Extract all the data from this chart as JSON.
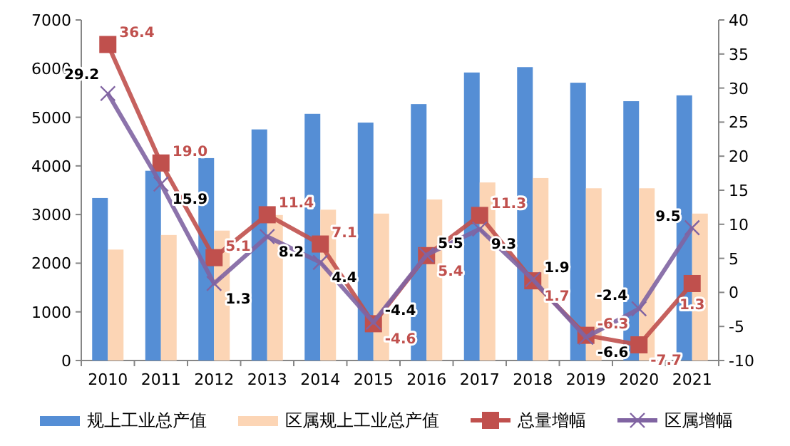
{
  "chart_data": {
    "type": "bar",
    "categories": [
      "2010",
      "2011",
      "2012",
      "2013",
      "2014",
      "2015",
      "2016",
      "2017",
      "2018",
      "2019",
      "2020",
      "2021"
    ],
    "ylim": [
      0,
      7000
    ],
    "yticks": [
      0,
      1000,
      2000,
      3000,
      4000,
      5000,
      6000,
      7000
    ],
    "y2lim": [
      -10,
      40
    ],
    "y2ticks": [
      -10,
      -5,
      0,
      5,
      10,
      15,
      20,
      25,
      30,
      35,
      40
    ],
    "legend": "bottom",
    "series": [
      {
        "name": "规上工业总产值",
        "color": "#558ed5",
        "values": [
          3340,
          3900,
          4160,
          4750,
          5070,
          4890,
          5270,
          5920,
          6030,
          5710,
          5330,
          5450
        ]
      },
      {
        "name": "区属规上工业总产值",
        "color": "#fcd5b5",
        "values": [
          2280,
          2580,
          2670,
          2990,
          3100,
          3020,
          3310,
          3660,
          3750,
          3540,
          3540,
          3020
        ]
      },
      {
        "name": "总量增幅",
        "type": "line",
        "axis": "y2",
        "marker": "square",
        "color": "#c0504d",
        "values": [
          36.4,
          19.0,
          5.1,
          11.4,
          7.1,
          -4.6,
          5.4,
          11.3,
          1.7,
          -6.3,
          -7.7,
          1.3
        ],
        "value_labels": [
          "36.4",
          "19.0",
          "5.1",
          "11.4",
          "7.1",
          "-4.6",
          "5.4",
          "11.3",
          "1.7",
          "-6.3",
          "-7.7",
          "1.3"
        ]
      },
      {
        "name": "区属增幅",
        "type": "line",
        "axis": "y2",
        "marker": "cross",
        "color": "#8064a2",
        "values": [
          29.2,
          15.9,
          1.3,
          8.2,
          4.4,
          -4.4,
          5.5,
          9.3,
          1.9,
          -6.6,
          -2.4,
          9.5
        ],
        "value_labels": [
          "29.2",
          "15.9",
          "1.3",
          "8.2",
          "4.4",
          "-4.4",
          "5.5",
          "9.3",
          "1.9",
          "-6.6",
          "-2.4",
          "9.5"
        ]
      }
    ]
  }
}
